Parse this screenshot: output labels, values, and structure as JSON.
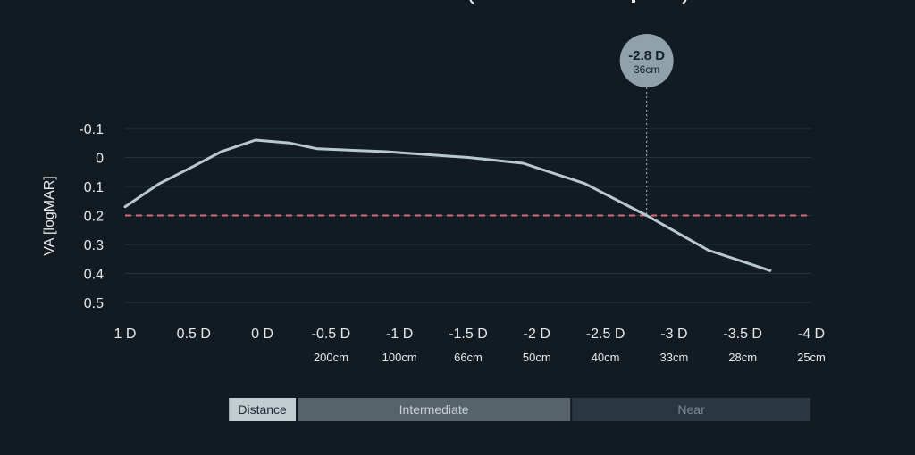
{
  "chart_data": {
    "type": "line",
    "ylabel": "VA [logMAR]",
    "xlabel": "",
    "x_diopters": [
      1,
      0.5,
      0,
      -0.5,
      -1,
      -1.5,
      -2,
      -2.5,
      -3,
      -3.5,
      -4
    ],
    "x_tick_labels": [
      "1 D",
      "0.5 D",
      "0 D",
      "-0.5 D",
      "-1 D",
      "-1.5 D",
      "-2 D",
      "-2.5 D",
      "-3 D",
      "-3.5 D",
      "-4 D"
    ],
    "x_distance_labels": [
      "",
      "",
      "",
      "200cm",
      "100cm",
      "66cm",
      "50cm",
      "40cm",
      "33cm",
      "28cm",
      "25cm"
    ],
    "y_ticks": [
      -0.1,
      0,
      0.1,
      0.2,
      0.3,
      0.4,
      0.5
    ],
    "y_tick_labels": [
      "-0.1",
      "0",
      "0.1",
      "0.2",
      "0.3",
      "0.4",
      "0.5"
    ],
    "ylim": [
      -0.1,
      0.5
    ],
    "xlim": [
      1,
      -4
    ],
    "y_inverted": true,
    "grid": true,
    "series": [
      {
        "color": "#b8c8d0",
        "points": [
          {
            "x": 1.0,
            "y": 0.17
          },
          {
            "x": 0.75,
            "y": 0.09
          },
          {
            "x": 0.5,
            "y": 0.03
          },
          {
            "x": 0.3,
            "y": -0.02
          },
          {
            "x": 0.05,
            "y": -0.06
          },
          {
            "x": -0.2,
            "y": -0.05
          },
          {
            "x": -0.4,
            "y": -0.03
          },
          {
            "x": -0.9,
            "y": -0.02
          },
          {
            "x": -1.5,
            "y": 0.0
          },
          {
            "x": -1.9,
            "y": 0.02
          },
          {
            "x": -2.35,
            "y": 0.09
          },
          {
            "x": -2.8,
            "y": 0.2
          },
          {
            "x": -3.25,
            "y": 0.32
          },
          {
            "x": -3.7,
            "y": 0.39
          }
        ]
      }
    ],
    "threshold": {
      "y": 0.2,
      "color": "#d9687a"
    },
    "marker": {
      "x": -2.8,
      "label": "-2.8 D",
      "sublabel": "36cm",
      "color": "#8fa1ab"
    },
    "ranges": [
      {
        "label": "Distance",
        "from": 0.25,
        "to": -0.25,
        "color": "#c3ccd1",
        "text_color": "#1d2830"
      },
      {
        "label": "Intermediate",
        "from": -0.25,
        "to": -2.25,
        "color": "#57636b",
        "text_color": "#c7d0d5"
      },
      {
        "label": "Near",
        "from": -2.25,
        "to": -4,
        "color": "#2a3640",
        "text_color": "#7d8a93"
      }
    ],
    "colors": {
      "background": "#121a22",
      "grid": "#26313b",
      "text": "#e4e9ec"
    }
  }
}
